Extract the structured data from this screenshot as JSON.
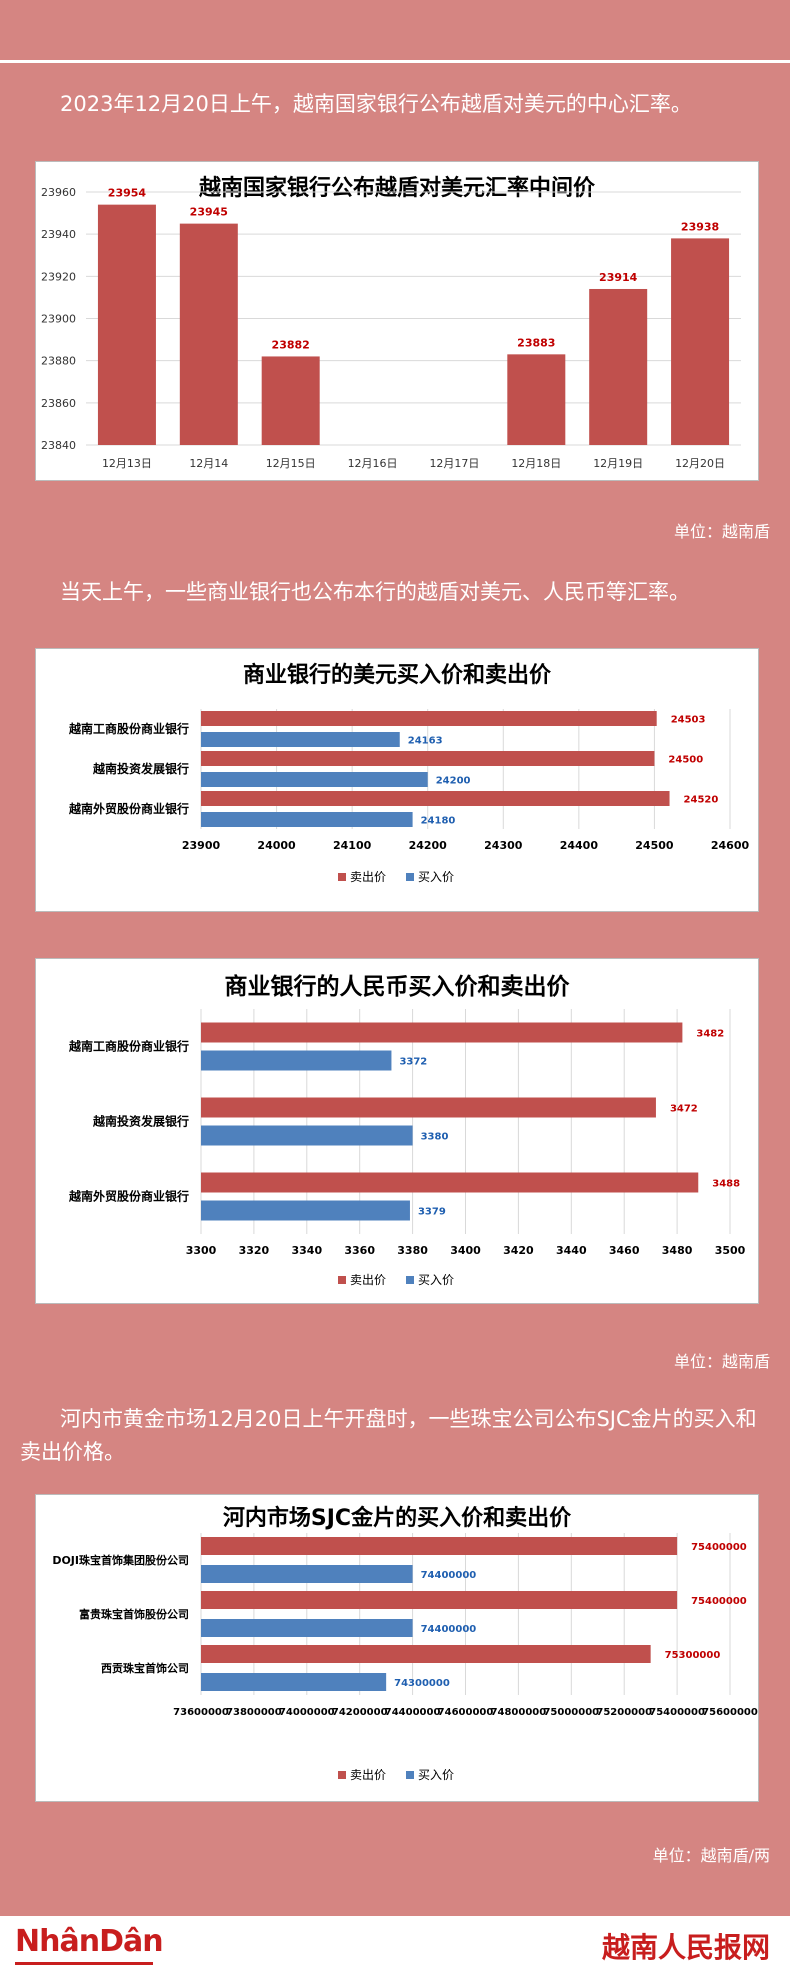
{
  "paragraphs": {
    "intro": "2023年12月20日上午，越南国家银行公布越盾对美元的中心汇率。",
    "banks": "当天上午，一些商业银行也公布本行的越盾对美元、人民币等汇率。",
    "gold": "河内市黄金市场12月20日上午开盘时，一些珠宝公司公布SJC金片的买入和卖出价格。"
  },
  "units": {
    "u1": "单位：越南盾",
    "u2": "单位：越南盾",
    "u3": "单位：越南盾/两"
  },
  "footer": {
    "left_logo": "NhânDân",
    "right_logo": "越南人民报网"
  },
  "colors": {
    "sell": "#c0504d",
    "buy": "#4f81bd",
    "label_sell": "#c00000",
    "label_buy": "#1f5fb0"
  },
  "chart_data": [
    {
      "type": "bar",
      "title": "越南国家银行公布越盾对美元汇率中间价",
      "categories": [
        "12月13日",
        "12月14",
        "12月15日",
        "12月16日",
        "12月17日",
        "12月18日",
        "12月19日",
        "12月20日"
      ],
      "values": [
        23954,
        23945,
        23882,
        null,
        null,
        23883,
        23914,
        23938
      ],
      "value_labels": [
        "23954",
        "23945",
        "23882",
        "",
        "",
        "23883",
        "23914",
        "23938"
      ],
      "ylim": [
        23840,
        23960
      ],
      "yticks": [
        "23840",
        "23860",
        "23880",
        "23900",
        "23920",
        "23940",
        "23960"
      ],
      "grid": true
    },
    {
      "type": "bar",
      "orientation": "horizontal",
      "title": "商业银行的美元买入价和卖出价",
      "categories": [
        "越南工商股份商业银行",
        "越南投资发展银行",
        "越南外贸股份商业银行"
      ],
      "series": [
        {
          "name": "卖出价",
          "values": [
            24503,
            24500,
            24520
          ],
          "labels": [
            "24503",
            "24500",
            "24520"
          ]
        },
        {
          "name": "买入价",
          "values": [
            24163,
            24200,
            24180
          ],
          "labels": [
            "24163",
            "24200",
            "24180"
          ]
        }
      ],
      "xlim": [
        23900,
        24600
      ],
      "xticks": [
        "23900",
        "24000",
        "24100",
        "24200",
        "24300",
        "24400",
        "24500",
        "24600"
      ],
      "legend": "bottom"
    },
    {
      "type": "bar",
      "orientation": "horizontal",
      "title": "商业银行的人民币买入价和卖出价",
      "categories": [
        "越南工商股份商业银行",
        "越南投资发展银行",
        "越南外贸股份商业银行"
      ],
      "series": [
        {
          "name": "卖出价",
          "values": [
            3482,
            3472,
            3488
          ],
          "labels": [
            "3482",
            "3472",
            "3488"
          ]
        },
        {
          "name": "买入价",
          "values": [
            3372,
            3380,
            3379
          ],
          "labels": [
            "3372",
            "3380",
            "3379"
          ]
        }
      ],
      "xlim": [
        3300,
        3500
      ],
      "xticks": [
        "3300",
        "3320",
        "3340",
        "3360",
        "3380",
        "3400",
        "3420",
        "3440",
        "3460",
        "3480",
        "3500"
      ],
      "legend": "bottom"
    },
    {
      "type": "bar",
      "orientation": "horizontal",
      "title": "河内市场SJC金片的买入价和卖出价",
      "categories": [
        "DOJI珠宝首饰集团股份公司",
        "富贵珠宝首饰股份公司",
        "西贡珠宝首饰公司"
      ],
      "series": [
        {
          "name": "卖出价",
          "values": [
            75400000,
            75400000,
            75300000
          ],
          "labels": [
            "75400000",
            "75400000",
            "75300000"
          ]
        },
        {
          "name": "买入价",
          "values": [
            74400000,
            74400000,
            74300000
          ],
          "labels": [
            "74400000",
            "74400000",
            "74300000"
          ]
        }
      ],
      "xlim": [
        73600000,
        75600000
      ],
      "xticks": [
        "73600000",
        "73800000",
        "74000000",
        "74200000",
        "74400000",
        "74600000",
        "74800000",
        "75000000",
        "75200000",
        "75400000",
        "75600000"
      ],
      "legend": "bottom"
    }
  ]
}
